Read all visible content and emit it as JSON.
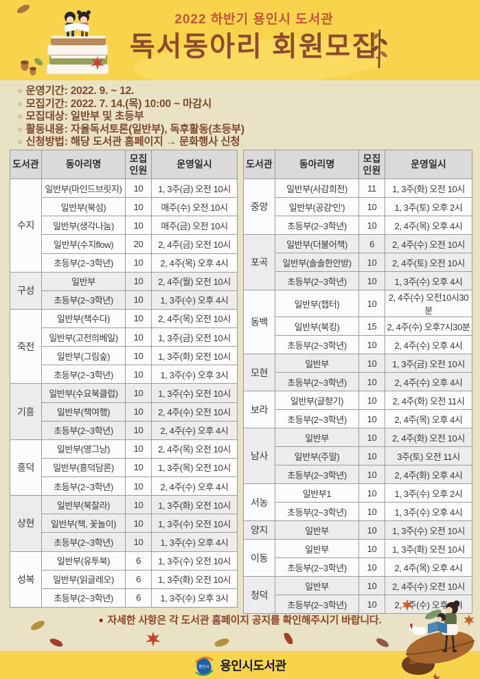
{
  "colors": {
    "banner_yellow": "#F8D44C",
    "beige": "#EAE2C5",
    "subtitle_red": "#C2553C",
    "title_brown": "#8E4A30",
    "info_brown": "#7C4A2E",
    "table_header_gray": "#DADADA",
    "row_shaded_gray": "#ECECEC",
    "note_brown": "#8A4527"
  },
  "header": {
    "subtitle": "2022 하반기 용인시 도서관",
    "title": "독서동아리 회원모집"
  },
  "info": {
    "lines": [
      {
        "bullet": "○",
        "text": "운영기간: 2022. 9. ~ 12."
      },
      {
        "bullet": "○",
        "text": "모집기간: 2022. 7. 14.(목) 10:00 ~ 마감시"
      },
      {
        "bullet": "○",
        "text": "모집대상: 일반부 및 초등부"
      },
      {
        "bullet": "○",
        "text": "활동내용: 자율독서토론(일반부), 독후활동(초등부)"
      },
      {
        "bullet": "○",
        "text": "신청방법: 해당 도서관 홈페이지 → 문화행사 신청"
      }
    ]
  },
  "table": {
    "columns": [
      "도서관",
      "동아리명",
      "모집\n인원",
      "운영일시"
    ],
    "left_groups": [
      {
        "library": "수지",
        "rows": [
          {
            "club": "일반부(마인드브릿지)",
            "quota": "10",
            "schedule": "1, 3주(금) 오전 10시"
          },
          {
            "club": "일반부(북섬)",
            "quota": "10",
            "schedule": "매주(수) 오전 10시"
          },
          {
            "club": "일반부(생각나눔)",
            "quota": "10",
            "schedule": "매주(금) 오전 10시"
          },
          {
            "club": "일반부(수지flow)",
            "quota": "20",
            "schedule": "2, 4주(금) 오전 10시"
          },
          {
            "club": "초등부(2~3학년)",
            "quota": "10",
            "schedule": "2, 4주(목) 오후 4시"
          }
        ]
      },
      {
        "library": "구성",
        "rows": [
          {
            "club": "일반부",
            "quota": "10",
            "schedule": "2, 4주(월) 오전 10시"
          },
          {
            "club": "초등부(2~3학년)",
            "quota": "10",
            "schedule": "1, 3주(수) 오후 4시"
          }
        ]
      },
      {
        "library": "죽전",
        "rows": [
          {
            "club": "일반부(책수다)",
            "quota": "10",
            "schedule": "2, 4주(목) 오전 10시"
          },
          {
            "club": "일반부(고전의베일)",
            "quota": "10",
            "schedule": "1, 3주(금) 오전 10시"
          },
          {
            "club": "일반부(그림숲)",
            "quota": "10",
            "schedule": "1, 3주(화) 오전 10시"
          },
          {
            "club": "초등부(2~3학년)",
            "quota": "10",
            "schedule": "1, 3주(수) 오후 3시"
          }
        ]
      },
      {
        "library": "기흥",
        "rows": [
          {
            "club": "일반부(수요북클럽)",
            "quota": "10",
            "schedule": "1, 3주(수) 오전 10시"
          },
          {
            "club": "일반부(책여행)",
            "quota": "10",
            "schedule": "2, 4주(수) 오전 10시"
          },
          {
            "club": "초등부(2~3학년)",
            "quota": "10",
            "schedule": "2, 4주(수) 오후 4시"
          }
        ]
      },
      {
        "library": "흥덕",
        "rows": [
          {
            "club": "일반부(영그낭)",
            "quota": "10",
            "schedule": "2, 4주(목) 오전 10시"
          },
          {
            "club": "일반부(흥덕담론)",
            "quota": "10",
            "schedule": "1, 3주(목) 오전 10시"
          },
          {
            "club": "초등부(2~3학년)",
            "quota": "10",
            "schedule": "2, 4주(수) 오후 4시"
          }
        ]
      },
      {
        "library": "상현",
        "rows": [
          {
            "club": "일반부(북찰라)",
            "quota": "10",
            "schedule": "1, 3주(화) 오전 10시"
          },
          {
            "club": "일반부(책, 꽃놀이)",
            "quota": "10",
            "schedule": "1, 3주(수) 오전 10시"
          },
          {
            "club": "초등부(2~3학년)",
            "quota": "10",
            "schedule": "1, 3주(수) 오후 4시"
          }
        ]
      },
      {
        "library": "성복",
        "rows": [
          {
            "club": "일반부(유투북)",
            "quota": "6",
            "schedule": "1, 3주(수) 오전 10시"
          },
          {
            "club": "일반부(읽글레오)",
            "quota": "6",
            "schedule": "1, 3주(화) 오전 10시"
          },
          {
            "club": "초등부(2~3학년)",
            "quota": "6",
            "schedule": "1, 3주(수) 오후 3시"
          }
        ]
      }
    ],
    "right_groups": [
      {
        "library": "중앙",
        "rows": [
          {
            "club": "일반부(사감희전)",
            "quota": "11",
            "schedule": "1, 3주(화) 오전 10시"
          },
          {
            "club": "일반부(공감'인')",
            "quota": "10",
            "schedule": "1, 3주(토) 오후 2시"
          },
          {
            "club": "초등부(2~3학년)",
            "quota": "10",
            "schedule": "2, 4주(목) 오후 4시"
          }
        ]
      },
      {
        "library": "포곡",
        "rows": [
          {
            "club": "일반부(더불어책)",
            "quota": "6",
            "schedule": "2, 4주(수) 오전 10시"
          },
          {
            "club": "일반부(솔솔한안방)",
            "quota": "10",
            "schedule": "2, 4주(토) 오전 10시"
          },
          {
            "club": "초등부(2~3학년)",
            "quota": "10",
            "schedule": "1, 3주(수) 오후 4시"
          }
        ]
      },
      {
        "library": "동백",
        "rows": [
          {
            "club": "일반부(챕터)",
            "quota": "10",
            "schedule": "2, 4주(수) 오전10시30분"
          },
          {
            "club": "일반부(북킹)",
            "quota": "15",
            "schedule": "2, 4주(수) 오후7시30분"
          },
          {
            "club": "초등부(2~3학년)",
            "quota": "10",
            "schedule": "2, 4주(수) 오후 4시"
          }
        ]
      },
      {
        "library": "모현",
        "rows": [
          {
            "club": "일반부",
            "quota": "10",
            "schedule": "1, 3주(금) 오전 10시"
          },
          {
            "club": "초등부(2~3학년)",
            "quota": "10",
            "schedule": "2, 4주(수) 오후 4시"
          }
        ]
      },
      {
        "library": "보라",
        "rows": [
          {
            "club": "일반부(글향기)",
            "quota": "10",
            "schedule": "2, 4주(화) 오전 11시"
          },
          {
            "club": "초등부(2~3학년)",
            "quota": "10",
            "schedule": "2, 4주(목) 오후 4시"
          }
        ]
      },
      {
        "library": "남사",
        "rows": [
          {
            "club": "일반부",
            "quota": "10",
            "schedule": "2, 4주(화) 오전 10시"
          },
          {
            "club": "일반부(주말)",
            "quota": "10",
            "schedule": "3주(토) 오전 11시"
          },
          {
            "club": "초등부(2~3학년)",
            "quota": "10",
            "schedule": "2, 4주(화) 오후 4시"
          }
        ]
      },
      {
        "library": "서농",
        "rows": [
          {
            "club": "일반부1",
            "quota": "10",
            "schedule": "1, 3주(수) 오후 2시"
          },
          {
            "club": "초등부(2~3학년)",
            "quota": "10",
            "schedule": "1, 3주(수) 오후 4시"
          }
        ]
      },
      {
        "library": "양지",
        "rows": [
          {
            "club": "일반부",
            "quota": "10",
            "schedule": "1, 3주(수) 오전 10시"
          }
        ]
      },
      {
        "library": "이동",
        "rows": [
          {
            "club": "일반부",
            "quota": "10",
            "schedule": "1, 3주(화) 오전 10시"
          },
          {
            "club": "초등부(2~3학년)",
            "quota": "10",
            "schedule": "2, 4주(목) 오후 4시"
          }
        ]
      },
      {
        "library": "청덕",
        "rows": [
          {
            "club": "일반부",
            "quota": "10",
            "schedule": "2, 4주(수) 오전 10시"
          },
          {
            "club": "초등부(2~3학년)",
            "quota": "10",
            "schedule": "2, 4주(수) 오후 4시"
          }
        ]
      }
    ]
  },
  "footer": {
    "note_bullet": "●",
    "note": "자세한 사항은 각 도서관 홈페이지 공지를 확인해주시기 바랍니다.",
    "logo_text": "용인시도서관",
    "logo_mark_text": "용인시"
  }
}
